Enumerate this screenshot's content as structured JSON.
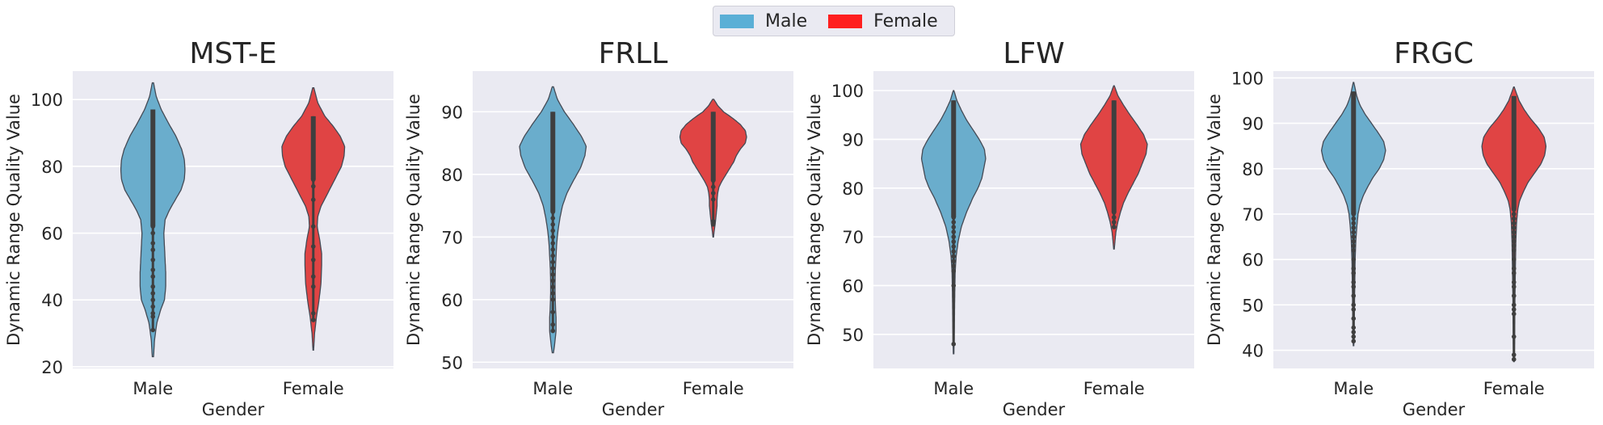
{
  "legend": {
    "items": [
      {
        "label": "Male",
        "color": "#5aafd6"
      },
      {
        "label": "Female",
        "color": "#ff1f1f"
      }
    ]
  },
  "chart_data": [
    {
      "type": "violin",
      "title": "MST-E",
      "xlabel": "Gender",
      "ylabel": "Dynamic Range Quality Value",
      "ylim": [
        19.5,
        108.5
      ],
      "yticks": [
        20,
        40,
        60,
        80,
        100
      ],
      "categories": [
        "Male",
        "Female"
      ],
      "series": [
        {
          "name": "Male",
          "fill": "#6aadcc",
          "min": 31,
          "max": 97,
          "clip_low": 23,
          "clip_high": 105,
          "profile": [
            [
              23,
              0.01
            ],
            [
              28,
              0.025
            ],
            [
              33,
              0.06
            ],
            [
              37,
              0.12
            ],
            [
              40,
              0.18
            ],
            [
              44,
              0.2
            ],
            [
              48,
              0.2
            ],
            [
              52,
              0.19
            ],
            [
              56,
              0.18
            ],
            [
              60,
              0.17
            ],
            [
              64,
              0.19
            ],
            [
              67,
              0.26
            ],
            [
              70,
              0.35
            ],
            [
              73,
              0.44
            ],
            [
              76,
              0.49
            ],
            [
              79,
              0.5
            ],
            [
              82,
              0.49
            ],
            [
              85,
              0.45
            ],
            [
              89,
              0.36
            ],
            [
              93,
              0.24
            ],
            [
              97,
              0.13
            ],
            [
              101,
              0.05
            ],
            [
              105,
              0.01
            ]
          ],
          "points": [
            31,
            35,
            36,
            38,
            40,
            42,
            44,
            47,
            49,
            52,
            55,
            57,
            60,
            62
          ]
        },
        {
          "name": "Female",
          "fill": "#e04444",
          "min": 34,
          "max": 95,
          "clip_low": 25,
          "clip_high": 103.5,
          "profile": [
            [
              25,
              0.005
            ],
            [
              30,
              0.02
            ],
            [
              35,
              0.05
            ],
            [
              40,
              0.09
            ],
            [
              45,
              0.12
            ],
            [
              50,
              0.13
            ],
            [
              54,
              0.13
            ],
            [
              58,
              0.1
            ],
            [
              62,
              0.06
            ],
            [
              65,
              0.07
            ],
            [
              68,
              0.12
            ],
            [
              71,
              0.2
            ],
            [
              74,
              0.28
            ],
            [
              77,
              0.36
            ],
            [
              80,
              0.44
            ],
            [
              83,
              0.48
            ],
            [
              86,
              0.49
            ],
            [
              89,
              0.42
            ],
            [
              92,
              0.31
            ],
            [
              95,
              0.18
            ],
            [
              99,
              0.07
            ],
            [
              103.5,
              0.01
            ]
          ],
          "points": [
            34,
            36,
            44,
            47,
            52,
            56,
            62,
            70,
            74,
            76
          ]
        }
      ]
    },
    {
      "type": "violin",
      "title": "FRLL",
      "xlabel": "Gender",
      "ylabel": "Dynamic Range Quality Value",
      "ylim": [
        49,
        96.5
      ],
      "yticks": [
        50,
        60,
        70,
        80,
        90
      ],
      "categories": [
        "Male",
        "Female"
      ],
      "series": [
        {
          "name": "Male",
          "fill": "#6aadcc",
          "min": 55,
          "max": 90,
          "clip_low": 51.5,
          "clip_high": 94,
          "profile": [
            [
              51.5,
              0.01
            ],
            [
              53,
              0.03
            ],
            [
              55,
              0.05
            ],
            [
              57,
              0.05
            ],
            [
              59,
              0.04
            ],
            [
              61,
              0.035
            ],
            [
              63,
              0.035
            ],
            [
              65,
              0.04
            ],
            [
              67,
              0.05
            ],
            [
              69,
              0.06
            ],
            [
              71,
              0.08
            ],
            [
              73,
              0.11
            ],
            [
              75,
              0.15
            ],
            [
              77,
              0.22
            ],
            [
              79,
              0.32
            ],
            [
              81,
              0.43
            ],
            [
              83,
              0.5
            ],
            [
              84.5,
              0.52
            ],
            [
              86,
              0.45
            ],
            [
              88,
              0.32
            ],
            [
              90,
              0.18
            ],
            [
              92,
              0.07
            ],
            [
              94,
              0.01
            ]
          ],
          "points": [
            55,
            56,
            58,
            60,
            61,
            62,
            63,
            64,
            65,
            66,
            67,
            68,
            69,
            70,
            71,
            72,
            73,
            74
          ]
        },
        {
          "name": "Female",
          "fill": "#e04444",
          "min": 72,
          "max": 90,
          "clip_low": 70,
          "clip_high": 92,
          "profile": [
            [
              70,
              0.005
            ],
            [
              71,
              0.015
            ],
            [
              72,
              0.03
            ],
            [
              73,
              0.04
            ],
            [
              74,
              0.05
            ],
            [
              75,
              0.06
            ],
            [
              76,
              0.06
            ],
            [
              77,
              0.07
            ],
            [
              78,
              0.09
            ],
            [
              79,
              0.14
            ],
            [
              80,
              0.2
            ],
            [
              81,
              0.26
            ],
            [
              82,
              0.32
            ],
            [
              83,
              0.36
            ],
            [
              84,
              0.42
            ],
            [
              85,
              0.5
            ],
            [
              86,
              0.52
            ],
            [
              87,
              0.5
            ],
            [
              88,
              0.42
            ],
            [
              89,
              0.3
            ],
            [
              90,
              0.16
            ],
            [
              91,
              0.07
            ],
            [
              92,
              0.01
            ]
          ],
          "points": [
            72,
            72.5,
            76,
            77,
            78,
            79
          ]
        }
      ]
    },
    {
      "type": "violin",
      "title": "LFW",
      "xlabel": "Gender",
      "ylabel": "Dynamic Range Quality Value",
      "ylim": [
        43,
        104
      ],
      "yticks": [
        50,
        60,
        70,
        80,
        90,
        100
      ],
      "categories": [
        "Male",
        "Female"
      ],
      "series": [
        {
          "name": "Male",
          "fill": "#6aadcc",
          "min": 48,
          "max": 98,
          "clip_low": 46,
          "clip_high": 100,
          "profile": [
            [
              46,
              0.005
            ],
            [
              50,
              0.01
            ],
            [
              55,
              0.015
            ],
            [
              60,
              0.02
            ],
            [
              63,
              0.025
            ],
            [
              66,
              0.04
            ],
            [
              69,
              0.07
            ],
            [
              72,
              0.12
            ],
            [
              75,
              0.2
            ],
            [
              78,
              0.3
            ],
            [
              80,
              0.38
            ],
            [
              82,
              0.44
            ],
            [
              84,
              0.47
            ],
            [
              86,
              0.5
            ],
            [
              88,
              0.48
            ],
            [
              90,
              0.4
            ],
            [
              92,
              0.3
            ],
            [
              94,
              0.2
            ],
            [
              96,
              0.12
            ],
            [
              98,
              0.05
            ],
            [
              100,
              0.005
            ]
          ],
          "points": [
            48,
            60,
            63,
            64,
            65,
            66,
            67,
            68,
            69,
            70,
            71,
            72,
            73,
            74
          ]
        },
        {
          "name": "Female",
          "fill": "#e04444",
          "min": 72,
          "max": 98,
          "clip_low": 67.5,
          "clip_high": 101,
          "profile": [
            [
              67.5,
              0.005
            ],
            [
              69,
              0.015
            ],
            [
              71,
              0.03
            ],
            [
              73,
              0.06
            ],
            [
              75,
              0.1
            ],
            [
              77,
              0.15
            ],
            [
              79,
              0.22
            ],
            [
              81,
              0.3
            ],
            [
              83,
              0.38
            ],
            [
              85,
              0.44
            ],
            [
              87,
              0.5
            ],
            [
              89,
              0.52
            ],
            [
              91,
              0.46
            ],
            [
              93,
              0.36
            ],
            [
              95,
              0.25
            ],
            [
              97,
              0.15
            ],
            [
              99,
              0.06
            ],
            [
              101,
              0.005
            ]
          ],
          "points": [
            72,
            73,
            74,
            75
          ]
        }
      ]
    },
    {
      "type": "violin",
      "title": "FRGC",
      "xlabel": "Gender",
      "ylabel": "Dynamic Range Quality Value",
      "ylim": [
        36,
        101.5
      ],
      "yticks": [
        40,
        50,
        60,
        70,
        80,
        90,
        100
      ],
      "categories": [
        "Male",
        "Female"
      ],
      "series": [
        {
          "name": "Male",
          "fill": "#6aadcc",
          "min": 42,
          "max": 97,
          "clip_low": 41,
          "clip_high": 99,
          "profile": [
            [
              41,
              0.005
            ],
            [
              45,
              0.01
            ],
            [
              50,
              0.015
            ],
            [
              55,
              0.02
            ],
            [
              60,
              0.025
            ],
            [
              64,
              0.035
            ],
            [
              67,
              0.05
            ],
            [
              70,
              0.07
            ],
            [
              72,
              0.1
            ],
            [
              74,
              0.15
            ],
            [
              76,
              0.22
            ],
            [
              78,
              0.3
            ],
            [
              80,
              0.4
            ],
            [
              82,
              0.47
            ],
            [
              84,
              0.5
            ],
            [
              86,
              0.47
            ],
            [
              88,
              0.38
            ],
            [
              90,
              0.28
            ],
            [
              92,
              0.18
            ],
            [
              94,
              0.1
            ],
            [
              96,
              0.05
            ],
            [
              99,
              0.005
            ]
          ],
          "points": [
            42,
            43,
            44,
            45,
            47,
            49,
            50,
            52,
            54,
            55,
            57,
            58,
            60,
            62,
            63,
            64,
            65,
            66,
            67,
            68,
            69,
            70
          ]
        },
        {
          "name": "Female",
          "fill": "#e04444",
          "min": 38,
          "max": 96,
          "clip_low": 37.5,
          "clip_high": 98,
          "profile": [
            [
              37.5,
              0.005
            ],
            [
              41,
              0.01
            ],
            [
              45,
              0.012
            ],
            [
              50,
              0.015
            ],
            [
              55,
              0.02
            ],
            [
              60,
              0.025
            ],
            [
              64,
              0.03
            ],
            [
              68,
              0.04
            ],
            [
              71,
              0.06
            ],
            [
              73,
              0.09
            ],
            [
              75,
              0.15
            ],
            [
              77,
              0.22
            ],
            [
              79,
              0.32
            ],
            [
              81,
              0.42
            ],
            [
              83,
              0.48
            ],
            [
              85,
              0.5
            ],
            [
              87,
              0.47
            ],
            [
              89,
              0.38
            ],
            [
              91,
              0.26
            ],
            [
              93,
              0.16
            ],
            [
              95,
              0.08
            ],
            [
              98,
              0.005
            ]
          ],
          "points": [
            38,
            39,
            43,
            48,
            49,
            50,
            52,
            54,
            55,
            57,
            58,
            60,
            62,
            63,
            64,
            65,
            66,
            67,
            68,
            69,
            70,
            71
          ]
        }
      ]
    }
  ]
}
